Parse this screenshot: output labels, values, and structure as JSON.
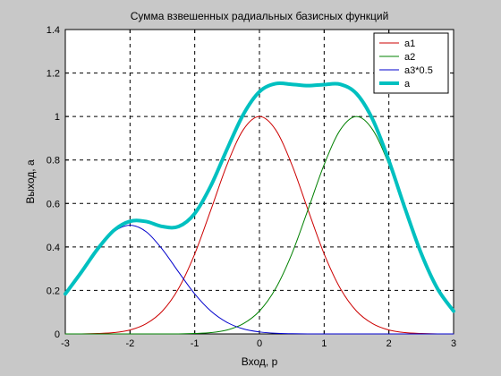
{
  "chart_data": {
    "type": "line",
    "title": "Сумма взвешенных радиальных базисных функций",
    "xlabel": "Вход,  p",
    "ylabel": "Выход,  a",
    "xlim": [
      -3,
      3
    ],
    "ylim": [
      0,
      1.4
    ],
    "xticks": [
      "-3",
      "-2",
      "-1",
      "0",
      "1",
      "2",
      "3"
    ],
    "yticks": [
      "0",
      "0.2",
      "0.4",
      "0.6",
      "0.8",
      "1",
      "1.2",
      "1.4"
    ],
    "grid": true,
    "legend_position": "top-right",
    "x": [
      -3.0,
      -2.75,
      -2.5,
      -2.25,
      -2.0,
      -1.75,
      -1.5,
      -1.25,
      -1.0,
      -0.75,
      -0.5,
      -0.25,
      0.0,
      0.25,
      0.5,
      0.75,
      1.0,
      1.25,
      1.5,
      1.75,
      2.0,
      2.25,
      2.5,
      2.75,
      3.0
    ],
    "series": [
      {
        "name": "a1",
        "color": "#cc0000",
        "width": 1,
        "values": [
          0.0,
          0.0,
          0.002,
          0.006,
          0.018,
          0.047,
          0.105,
          0.209,
          0.368,
          0.571,
          0.779,
          0.939,
          1.0,
          0.939,
          0.779,
          0.571,
          0.368,
          0.209,
          0.105,
          0.047,
          0.018,
          0.006,
          0.002,
          0.0,
          0.0
        ]
      },
      {
        "name": "a2",
        "color": "#008000",
        "width": 1,
        "values": [
          0.0,
          0.0,
          0.0,
          0.0,
          0.0,
          0.0,
          0.0,
          0.0,
          0.002,
          0.006,
          0.018,
          0.047,
          0.105,
          0.209,
          0.368,
          0.571,
          0.779,
          0.939,
          1.0,
          0.939,
          0.779,
          0.571,
          0.368,
          0.209,
          0.105
        ]
      },
      {
        "name": "a3*0.5",
        "color": "#0000cc",
        "width": 1,
        "values": [
          0.184,
          0.285,
          0.389,
          0.47,
          0.5,
          0.47,
          0.389,
          0.285,
          0.184,
          0.105,
          0.053,
          0.023,
          0.009,
          0.003,
          0.001,
          0.0,
          0.0,
          0.0,
          0.0,
          0.0,
          0.0,
          0.0,
          0.0,
          0.0,
          0.0
        ]
      },
      {
        "name": "a",
        "color": "#00c0c0",
        "width": 4,
        "values": [
          0.184,
          0.285,
          0.391,
          0.476,
          0.518,
          0.517,
          0.494,
          0.494,
          0.554,
          0.682,
          0.85,
          1.009,
          1.114,
          1.151,
          1.148,
          1.142,
          1.147,
          1.148,
          1.105,
          0.986,
          0.797,
          0.577,
          0.37,
          0.209,
          0.105
        ]
      }
    ]
  }
}
